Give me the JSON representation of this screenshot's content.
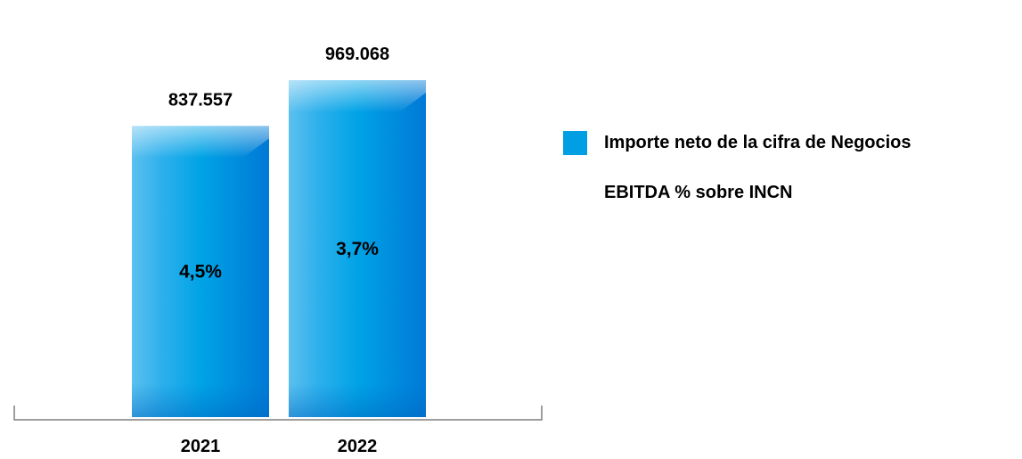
{
  "chart_data": {
    "type": "bar",
    "categories": [
      "2021",
      "2022"
    ],
    "series": [
      {
        "name": "Importe neto de la cifra de Negocios",
        "values": [
          837557,
          969068
        ],
        "value_labels": [
          "837.557",
          "969.068"
        ],
        "color": "#009fe3"
      },
      {
        "name": "EBITDA % sobre INCN",
        "values": [
          4.5,
          3.7
        ],
        "value_labels": [
          "4,5%",
          "3,7%"
        ]
      }
    ],
    "ylim": [
      0,
      1200000
    ],
    "grid": false,
    "legend_position": "right"
  }
}
